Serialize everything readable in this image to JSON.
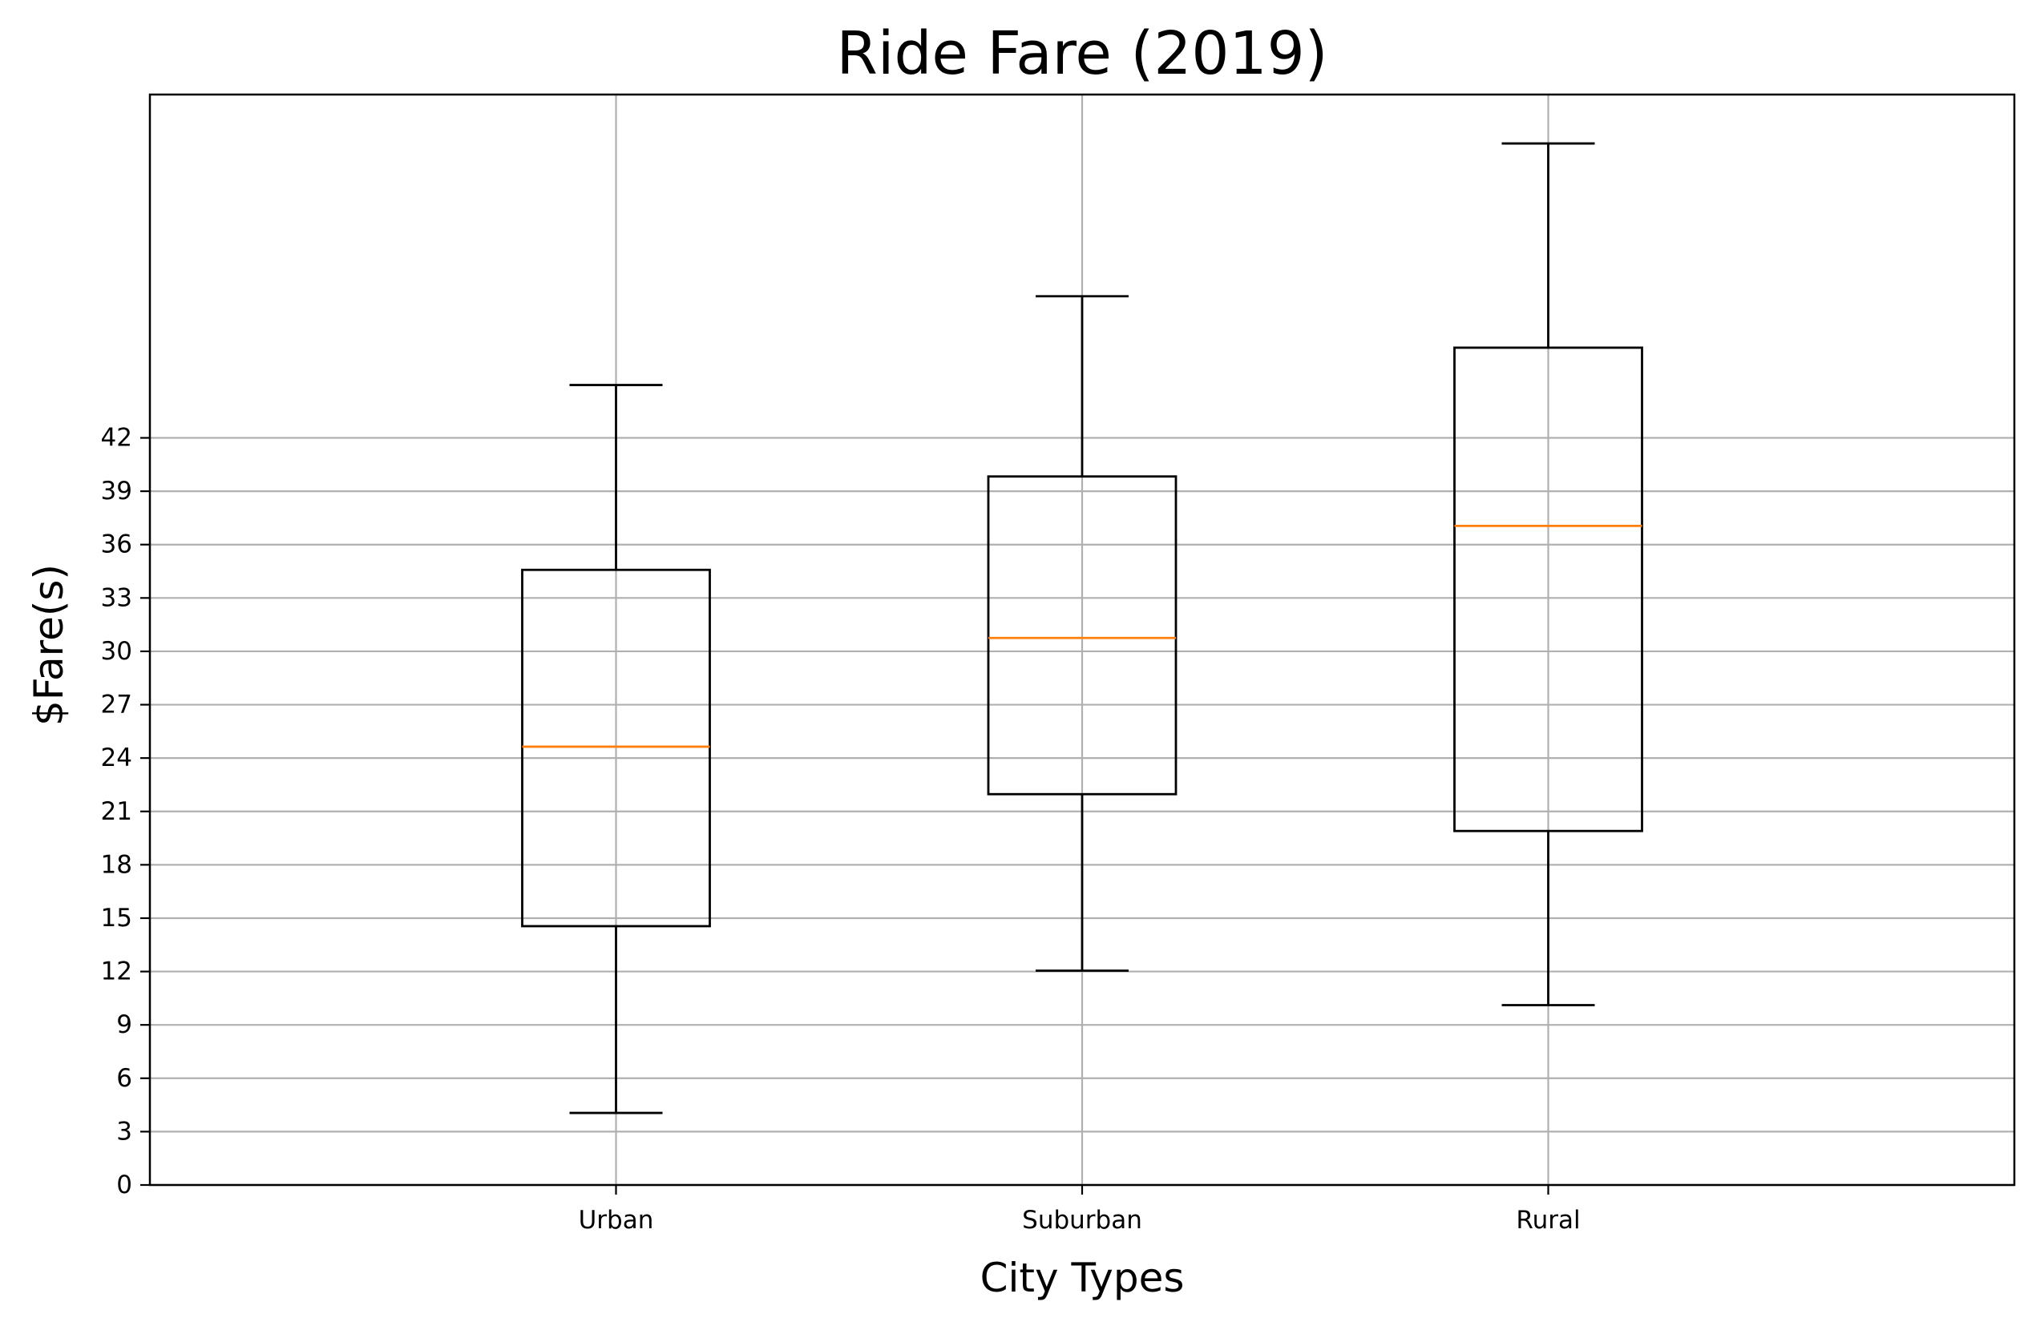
{
  "chart_data": {
    "type": "box",
    "title": "Ride Fare (2019)",
    "xlabel": "City Types",
    "ylabel": "$Fare(s)",
    "categories": [
      "Urban",
      "Suburban",
      "Rural"
    ],
    "boxes": [
      {
        "category": "Urban",
        "whisker_low": 4.05,
        "q1": 14.55,
        "median": 24.64,
        "q3": 34.58,
        "whisker_high": 44.97
      },
      {
        "category": "Suburban",
        "whisker_low": 12.05,
        "q1": 21.97,
        "median": 30.75,
        "q3": 39.83,
        "whisker_high": 49.96
      },
      {
        "category": "Rural",
        "whisker_low": 10.11,
        "q1": 19.9,
        "median": 37.05,
        "q3": 47.07,
        "whisker_high": 58.55
      }
    ],
    "yticks": [
      0,
      3,
      6,
      9,
      12,
      15,
      18,
      21,
      24,
      27,
      30,
      33,
      36,
      39,
      42
    ],
    "ylim": [
      0,
      61.3
    ],
    "grid": true,
    "colors": {
      "box": "#000000",
      "median": "#ff7f0e",
      "grid": "#b0b0b0"
    }
  }
}
